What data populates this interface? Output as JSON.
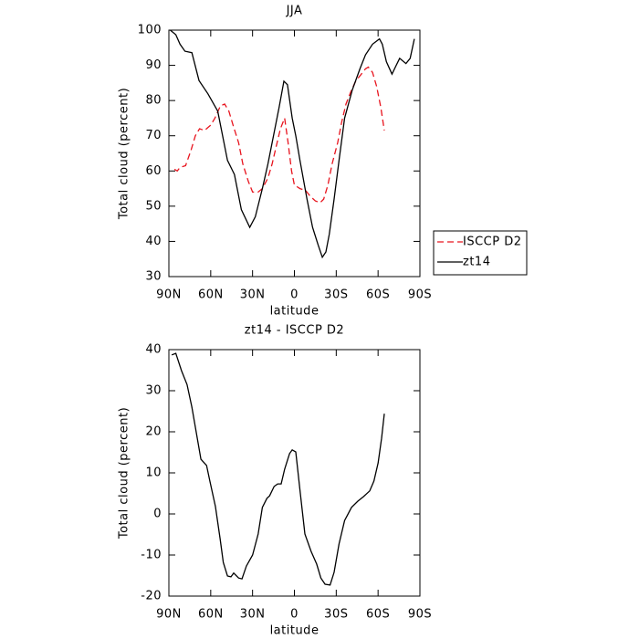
{
  "chart_data": [
    {
      "type": "line",
      "title": "JJA",
      "xlabel": "latitude",
      "ylabel": "Total cloud (percent)",
      "xlim": [
        90,
        -90
      ],
      "ylim": [
        30,
        100
      ],
      "xticks": [
        {
          "value": 90,
          "label": "90N"
        },
        {
          "value": 60,
          "label": "60N"
        },
        {
          "value": 30,
          "label": "30N"
        },
        0,
        {
          "value": -30,
          "label": "30S"
        },
        {
          "value": -60,
          "label": "60S"
        },
        {
          "value": -90,
          "label": "90S"
        }
      ],
      "yticks": [
        30,
        40,
        50,
        60,
        70,
        80,
        90,
        100
      ],
      "legend": "right",
      "series": [
        {
          "name": "ISCCP D2",
          "color": "#e8141e",
          "line_style": "dashed",
          "x": [
            86,
            84,
            82,
            78,
            74,
            71,
            68,
            64.5,
            60,
            57,
            53,
            50,
            47,
            44,
            40,
            37,
            33,
            30,
            26,
            23,
            19,
            16,
            13,
            10,
            7,
            4.5,
            2,
            0,
            -4,
            -8,
            -11,
            -15,
            -18.5,
            -21,
            -24,
            -27,
            -31,
            -34,
            -37,
            -41,
            -44,
            -48,
            -51,
            -53,
            -56,
            -59,
            -62,
            -64.5
          ],
          "values": [
            60.5,
            60,
            61,
            61.5,
            66,
            70,
            72,
            71.5,
            73,
            75,
            78.5,
            79,
            77,
            73,
            68,
            62,
            57,
            54,
            54,
            55,
            58,
            62,
            67,
            72,
            75,
            68,
            60,
            56,
            55,
            54.5,
            53,
            51.5,
            51,
            52,
            56,
            62,
            68,
            74,
            79,
            83,
            85.5,
            87.5,
            89,
            89.5,
            88,
            84,
            78,
            71.5
          ]
        },
        {
          "name": "zt14",
          "color": "#000000",
          "line_style": "solid",
          "x": [
            89,
            85,
            82,
            78.5,
            73.5,
            68.4,
            62,
            55,
            48,
            43,
            38,
            32,
            28,
            23,
            19,
            15,
            11,
            7.5,
            5,
            1.6,
            -1,
            -4,
            -9,
            -13,
            -17,
            -20,
            -22.6,
            -25,
            -28.5,
            -32,
            -36,
            -41.5,
            -47,
            -51,
            -56,
            -61,
            -63,
            -66,
            -70,
            -73,
            -75.5,
            -80,
            -83,
            -86
          ],
          "values": [
            100,
            98.7,
            96,
            94,
            93.6,
            85.7,
            81.9,
            77,
            63,
            59,
            49,
            44,
            47,
            55,
            62,
            70,
            78,
            85.5,
            84.5,
            75,
            70,
            63,
            52,
            44,
            39,
            35.5,
            37,
            42,
            52,
            63,
            75,
            83,
            89,
            93,
            96,
            97.5,
            96,
            91,
            87.5,
            90,
            92,
            90.5,
            92,
            97.5
          ]
        }
      ]
    },
    {
      "type": "line",
      "title": "zt14 - ISCCP D2",
      "xlabel": "latitude",
      "ylabel": "Total cloud (percent)",
      "xlim": [
        90,
        -90
      ],
      "ylim": [
        -20,
        40
      ],
      "xticks": [
        {
          "value": 90,
          "label": "90N"
        },
        {
          "value": 60,
          "label": "60N"
        },
        {
          "value": 30,
          "label": "30N"
        },
        0,
        {
          "value": -30,
          "label": "30S"
        },
        {
          "value": -60,
          "label": "60S"
        },
        {
          "value": -90,
          "label": "90S"
        }
      ],
      "yticks": [
        -20,
        -10,
        0,
        10,
        20,
        30,
        40
      ],
      "series": [
        {
          "color": "#000000",
          "line_style": "solid",
          "x": [
            88,
            85,
            81,
            77,
            73.5,
            67,
            63,
            60.6,
            56.6,
            53.3,
            51,
            48,
            45.5,
            43.5,
            40,
            37.6,
            34.4,
            30,
            26,
            23,
            19.7,
            17.8,
            14.5,
            12,
            9.5,
            7,
            3.5,
            1.6,
            -1,
            -4,
            -7.5,
            -12,
            -16,
            -19,
            -22,
            -25.6,
            -28.5,
            -32,
            -36,
            -41,
            -45.5,
            -49.5,
            -54,
            -57,
            -60,
            -62.5,
            -64.5
          ],
          "values": [
            38.7,
            39.1,
            34.9,
            31.5,
            26,
            13.3,
            11.8,
            8,
            1.8,
            -6,
            -11.8,
            -15.1,
            -15.3,
            -14.4,
            -15.6,
            -15.8,
            -12.7,
            -10,
            -4.9,
            1.6,
            3.8,
            4.4,
            6.7,
            7.3,
            7.3,
            10.9,
            14.7,
            15.6,
            15.1,
            5.8,
            -4.9,
            -9.1,
            -12.2,
            -15.6,
            -17.1,
            -17.3,
            -14.2,
            -7.3,
            -1.6,
            1.6,
            3.1,
            4.2,
            5.6,
            8,
            12.4,
            18.4,
            24.4
          ]
        }
      ]
    }
  ]
}
